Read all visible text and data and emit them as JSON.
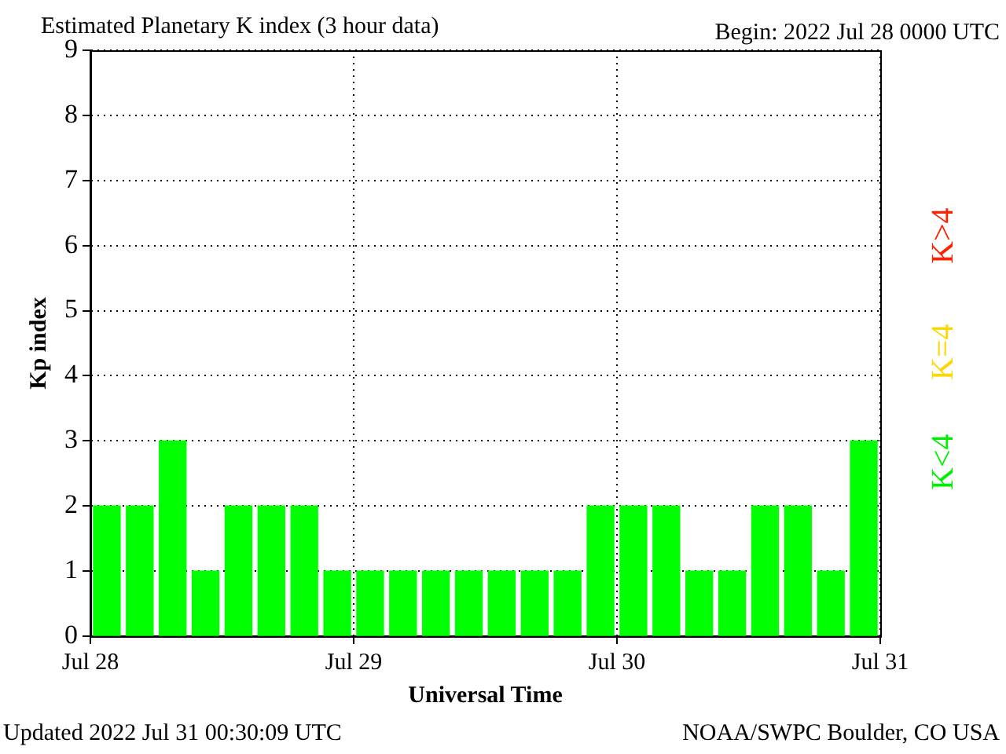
{
  "chart_data": {
    "type": "bar",
    "title": "Estimated Planetary K index (3 hour data)",
    "subtitle": "Begin:  2022 Jul 28 0000 UTC",
    "xlabel": "Universal Time",
    "ylabel": "Kp index",
    "x": [
      "2022-07-28T01:30",
      "2022-07-28T04:30",
      "2022-07-28T07:30",
      "2022-07-28T10:30",
      "2022-07-28T13:30",
      "2022-07-28T16:30",
      "2022-07-28T19:30",
      "2022-07-28T22:30",
      "2022-07-29T01:30",
      "2022-07-29T04:30",
      "2022-07-29T07:30",
      "2022-07-29T10:30",
      "2022-07-29T13:30",
      "2022-07-29T16:30",
      "2022-07-29T19:30",
      "2022-07-29T22:30",
      "2022-07-30T01:30",
      "2022-07-30T04:30",
      "2022-07-30T07:30",
      "2022-07-30T10:30",
      "2022-07-30T13:30",
      "2022-07-30T16:30",
      "2022-07-30T19:30",
      "2022-07-30T22:30"
    ],
    "values": [
      2,
      2,
      3,
      1,
      2,
      2,
      2,
      1,
      1,
      1,
      1,
      1,
      1,
      1,
      1,
      2,
      2,
      2,
      1,
      1,
      2,
      2,
      1,
      3
    ],
    "color": "#00ff00",
    "xlim": [
      "2022-07-28",
      "2022-07-31"
    ],
    "xticks": [
      {
        "value": "2022-07-28",
        "label": "Jul 28"
      },
      {
        "value": "2022-07-29",
        "label": "Jul 29"
      },
      {
        "value": "2022-07-30",
        "label": "Jul 30"
      },
      {
        "value": "2022-07-31",
        "label": "Jul 31"
      }
    ],
    "ylim": [
      0,
      9
    ],
    "yticks": [
      0,
      1,
      2,
      3,
      4,
      5,
      6,
      7,
      8,
      9
    ],
    "grid": true,
    "legend": false,
    "annotations": [
      "K<4",
      "K=4",
      "K>4",
      "Updated 2022 Jul 31 00:30:09 UTC",
      "NOAA/SWPC Boulder, CO USA"
    ]
  }
}
